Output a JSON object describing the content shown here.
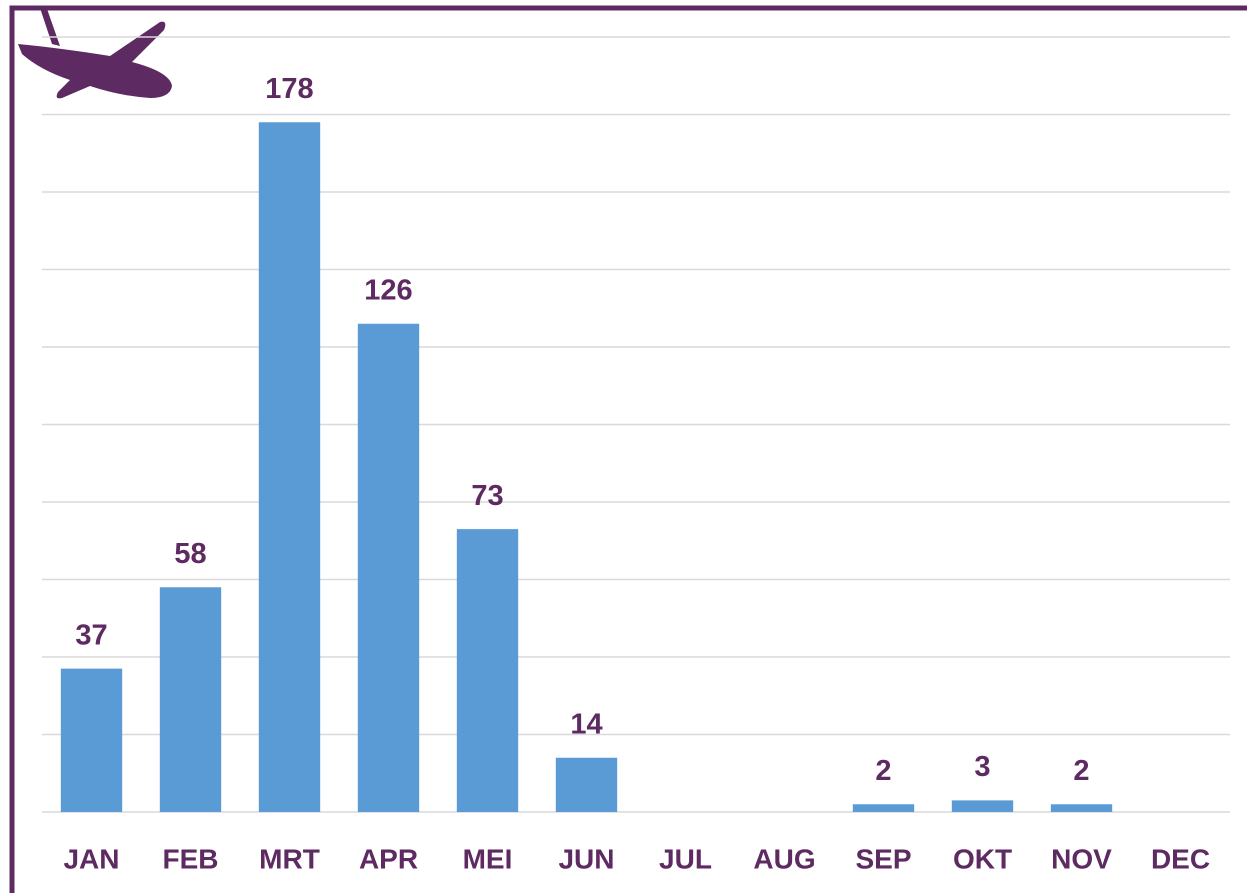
{
  "chart_data": {
    "type": "bar",
    "categories": [
      "JAN",
      "FEB",
      "MRT",
      "APR",
      "MEI",
      "JUN",
      "JUL",
      "AUG",
      "SEP",
      "OKT",
      "NOV",
      "DEC"
    ],
    "values": [
      37,
      58,
      178,
      126,
      73,
      14,
      null,
      null,
      2,
      3,
      2,
      null
    ],
    "color": "#5b9bd5",
    "ylim": [
      0,
      200
    ],
    "yticks": [
      0,
      20,
      40,
      60,
      80,
      100,
      120,
      140,
      160,
      180,
      200
    ],
    "grid": true
  }
}
